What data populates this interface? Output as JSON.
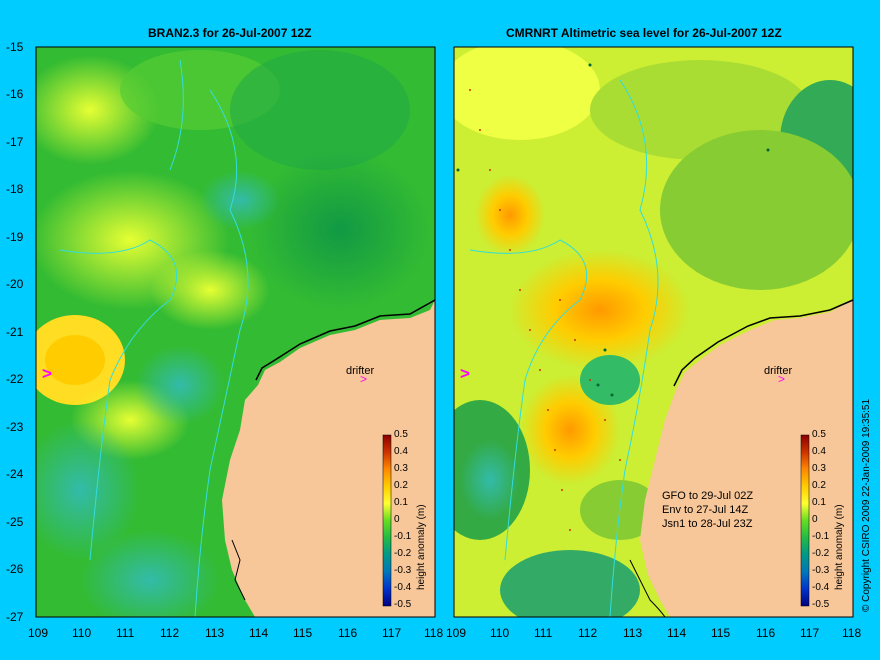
{
  "left_panel": {
    "title": "BRAN2.3 for 26-Jul-2007 12Z",
    "drifter_label": "drifter",
    "marker": ">",
    "colorbar_label": "height anomaly (m)"
  },
  "right_panel": {
    "title": "CMRNRT Altimetric sea level  for 26-Jul-2007 12Z",
    "drifter_label": "drifter",
    "marker": ">",
    "colorbar_label": "height anomaly (m)",
    "satellite_notes": [
      "GFO to 29-Jul 02Z",
      "Env to 27-Jul 14Z",
      "Jsn1 to 28-Jul 23Z"
    ]
  },
  "axes": {
    "lat_ticks": [
      "-15",
      "-16",
      "-17",
      "-18",
      "-19",
      "-20",
      "-21",
      "-22",
      "-23",
      "-24",
      "-25",
      "-26",
      "-27"
    ],
    "lon_ticks": [
      "109",
      "110",
      "111",
      "112",
      "113",
      "114",
      "115",
      "116",
      "117",
      "118"
    ]
  },
  "colorbar_ticks": [
    "0.5",
    "0.4",
    "0.3",
    "0.2",
    "0.1",
    "0",
    "-0.1",
    "-0.2",
    "-0.3",
    "-0.4",
    "-0.5"
  ],
  "colorbar_colors": [
    "#8b0000",
    "#cc3300",
    "#ff8800",
    "#ffcc00",
    "#ffff33",
    "#ccff33",
    "#33cc33",
    "#009966",
    "#006699",
    "#0033cc",
    "#000080"
  ],
  "copyright": "© Copyright CSIRO 2009   22-Jan-2009 19:35:51",
  "colors": {
    "background": "#00ccff",
    "land": "#f7c79a",
    "coast_strip": "#c8a98a"
  }
}
